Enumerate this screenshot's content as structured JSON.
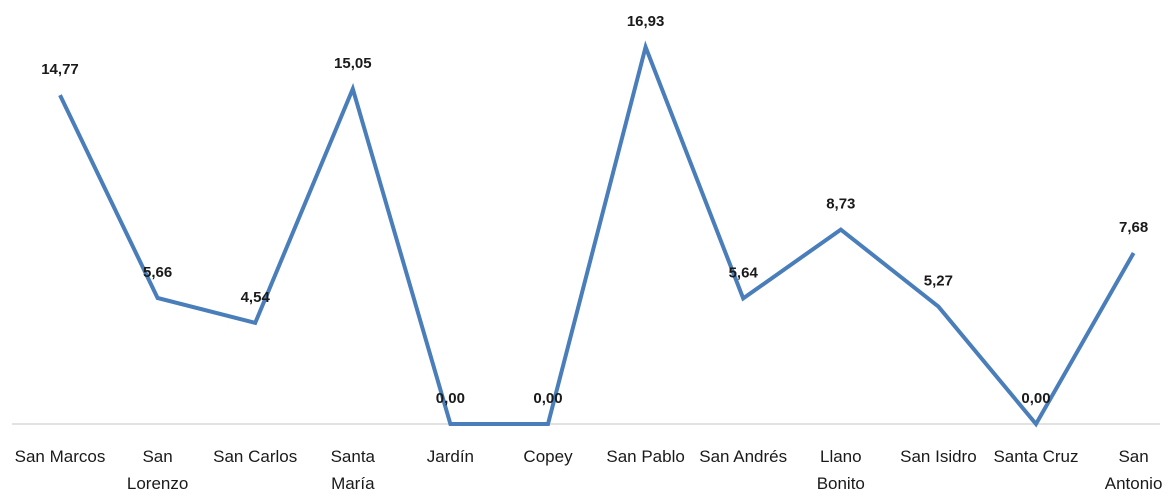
{
  "chart_data": {
    "type": "line",
    "categories": [
      [
        "San Marcos"
      ],
      [
        "San",
        "Lorenzo"
      ],
      [
        "San Carlos"
      ],
      [
        "Santa",
        "María"
      ],
      [
        "Jardín"
      ],
      [
        "Copey"
      ],
      [
        "San Pablo"
      ],
      [
        "San Andrés"
      ],
      [
        "Llano",
        "Bonito"
      ],
      [
        "San Isidro"
      ],
      [
        "Santa Cruz"
      ],
      [
        "San",
        "Antonio"
      ]
    ],
    "values": [
      14.77,
      5.66,
      4.54,
      15.05,
      0.0,
      0.0,
      16.93,
      5.64,
      8.73,
      5.27,
      0.0,
      7.68
    ],
    "data_labels": [
      "14,77",
      "5,66",
      "4,54",
      "15,05",
      "0,00",
      "0,00",
      "16,93",
      "5,64",
      "8,73",
      "5,27",
      "0,00",
      "7,68"
    ],
    "ylim": [
      0,
      17.5
    ],
    "grid": false,
    "line_color": "#4a7ebb",
    "axis_color": "#d9d9d9"
  }
}
